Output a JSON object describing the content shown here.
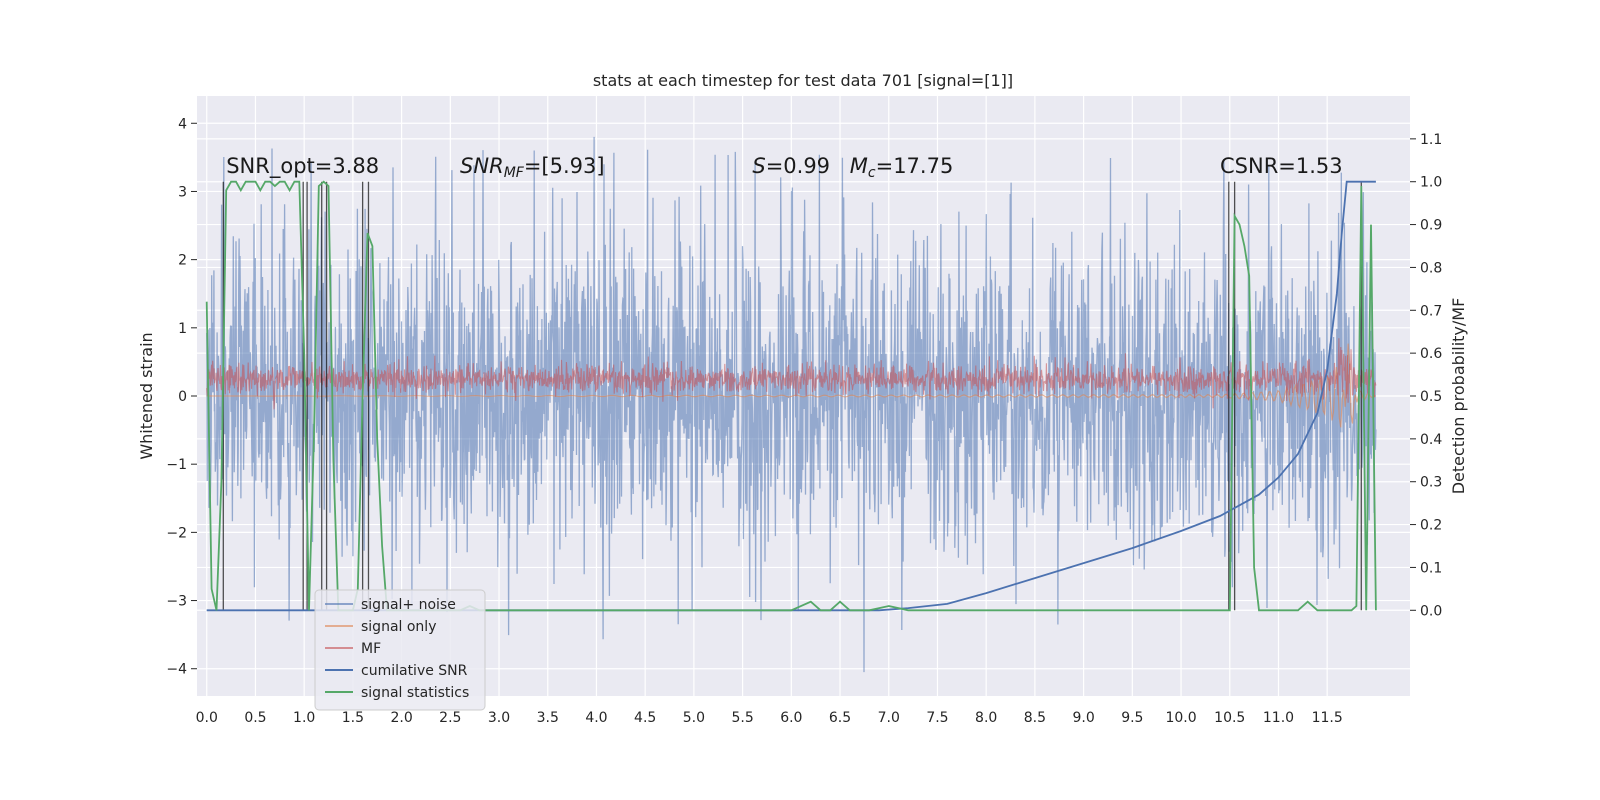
{
  "chart_data": {
    "type": "line",
    "title": "stats at each timestep for test data 701 [signal=[1]]",
    "xlabel": "",
    "ylabel": "Whitened strain",
    "y2label": "Detection probability/MF",
    "xlim": [
      -0.1,
      12.35
    ],
    "ylim": [
      -4.4,
      4.4
    ],
    "y2lim": [
      -0.2,
      1.2
    ],
    "x_ticks": [
      "0.0",
      "0.5",
      "1.0",
      "1.5",
      "2.0",
      "2.5",
      "3.0",
      "3.5",
      "4.0",
      "4.5",
      "5.0",
      "5.5",
      "6.0",
      "6.5",
      "7.0",
      "7.5",
      "8.0",
      "8.5",
      "9.0",
      "9.5",
      "10.0",
      "10.5",
      "11.0",
      "11.5"
    ],
    "y_ticks": [
      "−4",
      "−3",
      "−2",
      "−1",
      "0",
      "1",
      "2",
      "3",
      "4"
    ],
    "y2_ticks": [
      "0.0",
      "0.1",
      "0.2",
      "0.3",
      "0.4",
      "0.5",
      "0.6",
      "0.7",
      "0.8",
      "0.9",
      "1.0",
      "1.1"
    ],
    "grid": true,
    "legend_position": "lower-left",
    "annotations": [
      {
        "text": "SNR_opt=3.88",
        "x": 0.2,
        "y": 1.02
      },
      {
        "text": "SNR_MF=[5.93]",
        "x": 2.6,
        "y": 1.02,
        "math": true
      },
      {
        "text": "S=0.99",
        "x": 5.6,
        "y": 1.02,
        "math": true
      },
      {
        "text": "M_c=17.75",
        "x": 6.6,
        "y": 1.02,
        "math": true
      },
      {
        "text": "CSNR=1.53",
        "x": 10.4,
        "y": 1.02
      }
    ],
    "series": [
      {
        "name": "signal+ noise",
        "axis": "left",
        "color": "#4c72b0",
        "amplitude": 1.1,
        "peak_max": 3.95,
        "peak_min": -4.05
      },
      {
        "name": "signal only",
        "axis": "left",
        "color": "#dd8452",
        "description_points": [
          [
            0,
            0
          ],
          [
            10.4,
            0.02
          ],
          [
            11.0,
            0.08
          ],
          [
            11.5,
            0.3
          ],
          [
            11.65,
            0.5
          ],
          [
            11.72,
            -0.9
          ],
          [
            11.8,
            0.1
          ],
          [
            12.0,
            0.0
          ]
        ]
      },
      {
        "name": "MF",
        "axis": "left",
        "color": "#c44e52",
        "amplitude": 0.2,
        "offset": 0.25
      },
      {
        "name": "cumilative SNR",
        "axis": "right",
        "color": "#4c72b0",
        "x": [
          0.0,
          6.9,
          7.2,
          7.6,
          8.0,
          8.5,
          9.0,
          9.5,
          10.0,
          10.4,
          10.6,
          10.8,
          11.0,
          11.2,
          11.4,
          11.5,
          11.6,
          11.65,
          11.7,
          11.75,
          12.0
        ],
        "y": [
          0.0,
          0.0,
          0.005,
          0.015,
          0.04,
          0.075,
          0.11,
          0.145,
          0.185,
          0.22,
          0.245,
          0.27,
          0.31,
          0.365,
          0.46,
          0.56,
          0.74,
          0.88,
          1.0,
          1.0,
          1.0
        ]
      },
      {
        "name": "signal statistics",
        "axis": "right",
        "color": "#55a868",
        "x": [
          0.0,
          0.05,
          0.1,
          0.15,
          0.2,
          0.25,
          0.3,
          0.35,
          0.4,
          0.45,
          0.5,
          0.55,
          0.6,
          0.65,
          0.7,
          0.75,
          0.8,
          0.85,
          0.9,
          0.95,
          1.0,
          1.05,
          1.1,
          1.15,
          1.2,
          1.25,
          1.3,
          1.35,
          1.4,
          1.45,
          1.5,
          1.55,
          1.6,
          1.65,
          1.7,
          1.75,
          1.8,
          1.85,
          1.9,
          2.0,
          2.5,
          2.6,
          2.7,
          2.8,
          3.0,
          4.0,
          5.0,
          6.0,
          6.2,
          6.3,
          6.4,
          6.5,
          6.6,
          6.7,
          6.8,
          7.0,
          7.2,
          8.0,
          9.0,
          9.2,
          10.0,
          10.5,
          10.55,
          10.6,
          10.65,
          10.7,
          10.75,
          10.8,
          10.9,
          11.0,
          11.2,
          11.3,
          11.4,
          11.5,
          11.7,
          11.75,
          11.8,
          11.85,
          11.9,
          11.95,
          12.0
        ],
        "y": [
          0.72,
          0.05,
          0.0,
          0.3,
          0.98,
          1.0,
          1.0,
          0.98,
          1.0,
          1.0,
          1.0,
          0.98,
          1.0,
          1.0,
          0.99,
          1.0,
          1.0,
          0.98,
          1.0,
          1.0,
          0.6,
          0.0,
          0.4,
          0.99,
          1.0,
          0.99,
          0.35,
          0.0,
          0.0,
          0.0,
          0.0,
          0.05,
          0.5,
          0.88,
          0.85,
          0.4,
          0.15,
          0.0,
          0.0,
          0.0,
          0.0,
          0.0,
          0.01,
          0.0,
          0.0,
          0.0,
          0.0,
          0.0,
          0.02,
          0.0,
          0.0,
          0.02,
          0.0,
          0.0,
          0.0,
          0.01,
          0.0,
          0.0,
          0.0,
          0.0,
          0.0,
          0.0,
          0.92,
          0.9,
          0.85,
          0.78,
          0.1,
          0.0,
          0.0,
          0.0,
          0.0,
          0.02,
          0.0,
          0.0,
          0.0,
          0.0,
          0.01,
          0.99,
          0.0,
          0.9,
          0.0
        ]
      },
      {
        "name": "event markers",
        "axis": "right",
        "color": "#1a1a1a",
        "legend": false,
        "x": [
          0.17,
          0.99,
          1.03,
          1.18,
          1.23,
          1.6,
          1.66,
          10.49,
          10.55,
          11.85
        ]
      }
    ]
  }
}
